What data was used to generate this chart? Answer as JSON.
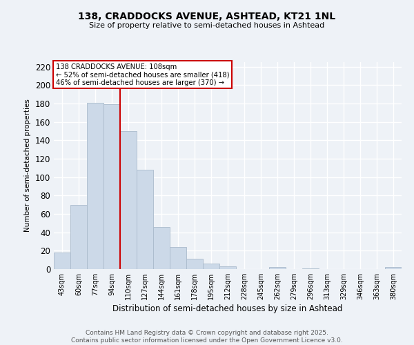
{
  "title_line1": "138, CRADDOCKS AVENUE, ASHTEAD, KT21 1NL",
  "title_line2": "Size of property relative to semi-detached houses in Ashtead",
  "xlabel": "Distribution of semi-detached houses by size in Ashtead",
  "ylabel": "Number of semi-detached properties",
  "bar_labels": [
    "43sqm",
    "60sqm",
    "77sqm",
    "94sqm",
    "110sqm",
    "127sqm",
    "144sqm",
    "161sqm",
    "178sqm",
    "195sqm",
    "212sqm",
    "228sqm",
    "245sqm",
    "262sqm",
    "279sqm",
    "296sqm",
    "313sqm",
    "329sqm",
    "346sqm",
    "363sqm",
    "380sqm"
  ],
  "bar_values": [
    18,
    70,
    181,
    179,
    150,
    108,
    46,
    24,
    11,
    6,
    3,
    0,
    0,
    2,
    0,
    1,
    0,
    0,
    0,
    0,
    2
  ],
  "bar_color": "#ccd9e8",
  "bar_edgecolor": "#aabbcc",
  "vline_color": "#cc0000",
  "vline_pos": 3.5,
  "annotation_title": "138 CRADDOCKS AVENUE: 108sqm",
  "annotation_line1": "← 52% of semi-detached houses are smaller (418)",
  "annotation_line2": "46% of semi-detached houses are larger (370) →",
  "annotation_box_edgecolor": "#cc0000",
  "ylim": [
    0,
    225
  ],
  "yticks": [
    0,
    20,
    40,
    60,
    80,
    100,
    120,
    140,
    160,
    180,
    200,
    220
  ],
  "footer": "Contains HM Land Registry data © Crown copyright and database right 2025.\nContains public sector information licensed under the Open Government Licence v3.0.",
  "bg_color": "#eef2f7",
  "plot_bg_color": "#eef2f7",
  "grid_color": "#ffffff"
}
